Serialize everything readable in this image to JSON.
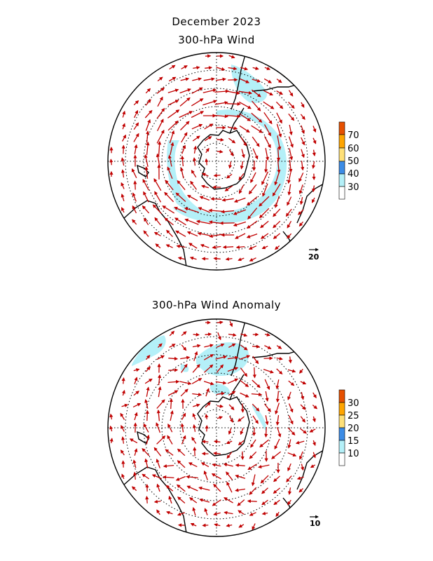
{
  "figure": {
    "title": "December 2023",
    "colors": {
      "vector": "#c00000",
      "coast": "#000000",
      "grid": "#000000"
    }
  },
  "panels": [
    {
      "id": "wind",
      "title": "300-hPa Wind",
      "colorbar": {
        "labels": [
          "30",
          "40",
          "50",
          "60",
          "70"
        ],
        "colors": [
          "#ffffff",
          "#b4f0f8",
          "#3c8ce6",
          "#ffe078",
          "#ffa500",
          "#e65000"
        ]
      },
      "reference_vector": {
        "label": "20"
      }
    },
    {
      "id": "anomaly",
      "title": "300-hPa Wind Anomaly",
      "colorbar": {
        "labels": [
          "10",
          "15",
          "20",
          "25",
          "30"
        ],
        "colors": [
          "#ffffff",
          "#b4f0f8",
          "#3c8ce6",
          "#ffe078",
          "#ffa500",
          "#e65000"
        ]
      },
      "reference_vector": {
        "label": "10"
      }
    }
  ]
}
